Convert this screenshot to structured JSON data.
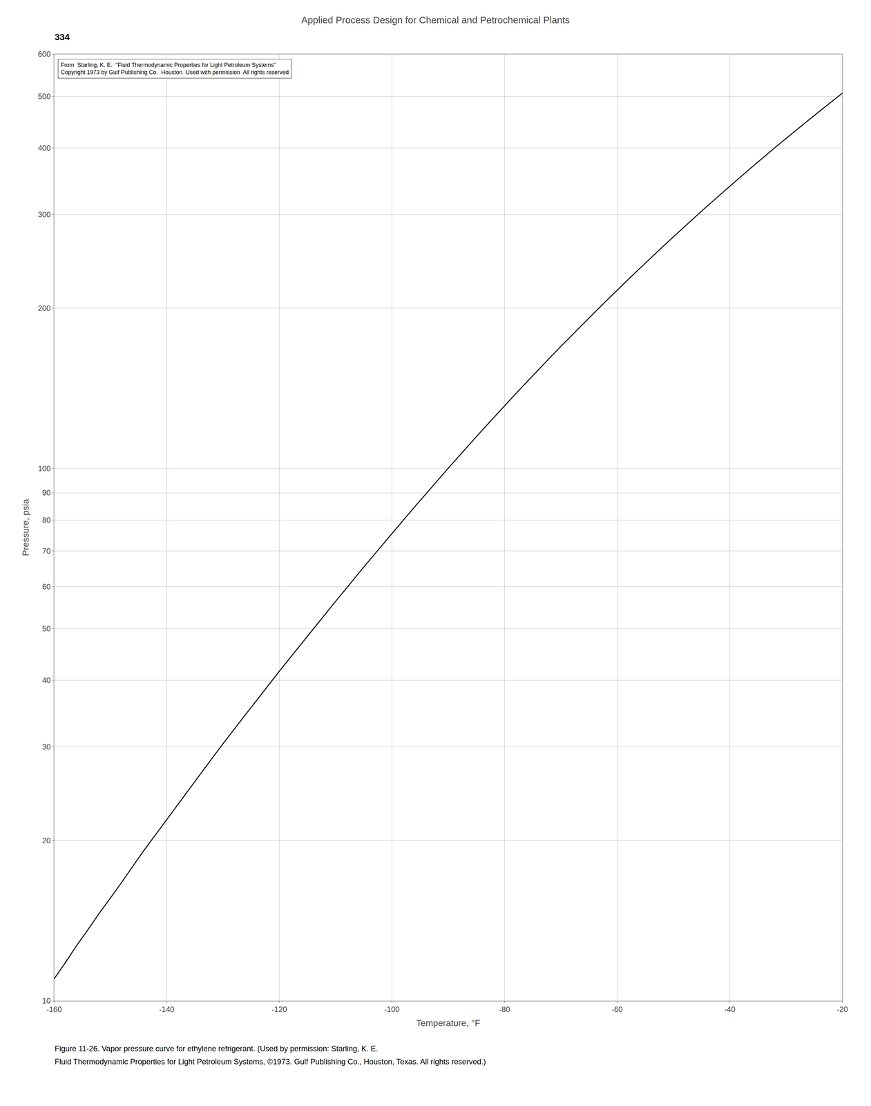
{
  "chart_data": {
    "type": "line",
    "title": "Applied Process Design for Chemical and Petrochemical Plants",
    "xlabel": "Temperature, °F",
    "ylabel": "Pressure, psia",
    "annotations": [
      "334",
      "From  Starling, K. E.  \"Fluid Thermodynamic Properties for Light Petroleum Systems\"",
      "Copyright 1973 by Gulf Publishing Co.  Houston  Used with permission  All rights reserved",
      "Figure 11-26. Vapor pressure curve for ethylene refrigerant. (Used by permission: Starling, K. E.",
      "Fluid Thermodynamic Properties for Light Petroleum Systems, ©1973. Gulf Publishing Co., Houston, Texas. All rights reserved.)"
    ],
    "x": [
      -160,
      -158,
      -156,
      -154,
      -152,
      -150,
      -148,
      -146,
      -144,
      -142,
      -140,
      -138,
      -136,
      -134,
      -132,
      -130,
      -128,
      -126,
      -124,
      -122,
      -120,
      -118,
      -116,
      -114,
      -112,
      -110,
      -108,
      -106,
      -104,
      -102,
      -100,
      -98,
      -96,
      -94,
      -92,
      -90,
      -88,
      -86,
      -84,
      -82,
      -80,
      -78,
      -76,
      -74,
      -72,
      -70,
      -68,
      -66,
      -64,
      -62,
      -60,
      -58,
      -56,
      -54,
      -52,
      -50,
      -48,
      -46,
      -44,
      -42,
      -40,
      -38,
      -36,
      -34,
      -32,
      -30,
      -28,
      -26,
      -24,
      -22,
      -20
    ],
    "values": [
      11.0,
      11.8,
      12.7,
      13.6,
      14.6,
      15.6,
      16.7,
      17.9,
      19.2,
      20.5,
      21.9,
      23.4,
      25.0,
      26.7,
      28.5,
      30.4,
      32.4,
      34.5,
      36.7,
      39.1,
      41.6,
      44.2,
      47.0,
      49.9,
      53.0,
      56.3,
      59.7,
      63.4,
      67.2,
      71.2,
      75.5,
      79.9,
      84.6,
      89.5,
      94.7,
      100.1,
      105.7,
      111.7,
      117.9,
      124.3,
      131.1,
      138.2,
      145.5,
      153.2,
      161.2,
      169.5,
      178.1,
      187.1,
      196.4,
      206.1,
      216.2,
      226.6,
      237.4,
      248.7,
      260.3,
      272.3,
      284.8,
      297.6,
      311.0,
      324.7,
      338.9,
      353.5,
      368.6,
      384.2,
      400.2,
      416.7,
      433.7,
      451.2,
      469.2,
      487.7,
      506.7
    ],
    "color": "#000000",
    "log": "y",
    "grid": true,
    "xlim": [
      -160,
      -20
    ],
    "ylim": [
      10,
      600
    ],
    "xticks": [
      -160,
      -140,
      -120,
      -100,
      -80,
      -60,
      -40,
      -20
    ],
    "yticks": [
      10,
      20,
      30,
      40,
      50,
      60,
      70,
      80,
      90,
      100,
      200,
      300,
      400,
      500,
      600
    ]
  }
}
